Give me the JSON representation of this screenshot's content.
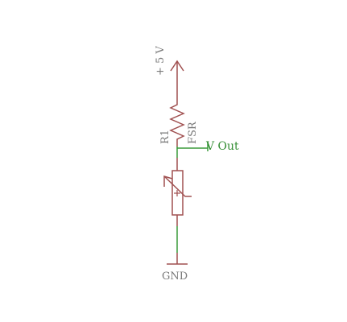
{
  "schematic": {
    "supply": {
      "label": "+ 5 V"
    },
    "fsr": {
      "designator": "R1",
      "value": "FSR"
    },
    "output": {
      "label": "V Out"
    },
    "ground": {
      "label": "GND"
    }
  },
  "colors": {
    "component": "#a05050",
    "wire": "#3a9a3a",
    "net_label": "#2e8b2e",
    "text": "#7a7a7a"
  }
}
